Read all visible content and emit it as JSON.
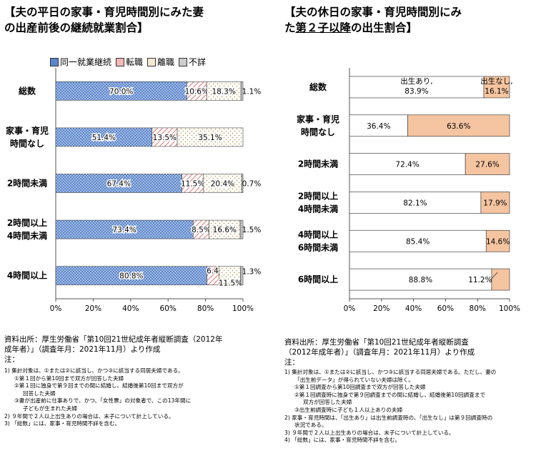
{
  "left": {
    "title_line1": "【夫の平日の家事・育児時間別にみた妻",
    "title_line2": "の出産前後の継続就業割合】",
    "legend": [
      "同一就業継続",
      "転職",
      "離職",
      "不詳"
    ],
    "source_line1": "資料出所：厚生労働省「第10回21世紀成年者縦断調査（2012年",
    "source_line2": "成年者）」（調査年月：2021年11月）より作成",
    "notes_head": "注：",
    "notes": [
      "1) 集計対象は、①または②に該当し、かつ③に該当する同居夫婦である。",
      "①第１回から第10回まで双方が回答した夫婦",
      "②第１回に独身で第９回までの間に結婚し、結婚後第10回まで双方が",
      "回答した夫婦",
      "③妻が出産前に仕事ありで、かつ、「女性票」の対象者で、この13年間に",
      "子どもが生まれた夫婦",
      "2) ９年間で２人以上出生ありの場合は、末子について計上している。",
      "3) 「総数」には、家事・育児時間不詳を含む。"
    ]
  },
  "right": {
    "title_line1": "【夫の休日の家事・育児時間別にみ",
    "title_line2_a": "た",
    "title_line2_b": "第２子以降",
    "title_line2_c": "の出生割合】",
    "source_line1": "資料出所：厚生労働省「第10回21世紀成年者縦断調査",
    "source_line2": "（2012年成年者）」（調査年月：2021年11月）より作成",
    "notes_head": "注：",
    "notes": [
      "1) 集計対象は、①または②に該当し、かつ③に該当する同居夫婦である。ただし、妻の",
      "「出生前データ」が得られていない夫婦は除く。",
      "①第１回調査から第10回調査まで双方が回答した夫婦",
      "②第１回調査時に独身で第９回調査までの間に結婚し、結婚後第10回調査まで",
      "双方が回答した夫婦",
      "③出生前調査時に子ども１人以上ありの夫婦",
      "2) 家事・育児時間は、「出生あり」は出生前調査時の、「出生なし」は第９回調査時の",
      "状況である。",
      "3) ９年間で２人以上出生ありの場合は、末子について計上している。",
      "4) 「総数」には、家事・育児時間不詳を含む。"
    ]
  },
  "chart_data": [
    {
      "type": "bar",
      "orientation": "horizontal",
      "stacked": true,
      "categories": [
        [
          "総数"
        ],
        [
          "家事・育児",
          "時間なし"
        ],
        [
          "2時間未満"
        ],
        [
          "2時間以上",
          "4時間未満"
        ],
        [
          "4時間以上"
        ]
      ],
      "series": [
        {
          "name": "同一就業継続",
          "values": [
            70.0,
            51.4,
            67.4,
            73.4,
            80.8
          ],
          "labels": [
            "70.0%",
            "51.4%",
            "67.4%",
            "73.4%",
            "80.8%"
          ],
          "color": "#4a78c0"
        },
        {
          "name": "転職",
          "values": [
            10.6,
            13.5,
            11.5,
            8.5,
            6.4
          ],
          "labels": [
            "10.6%",
            "13.5%",
            "11.5%",
            "8.5%",
            "6.4%"
          ],
          "color": "#d9534f"
        },
        {
          "name": "離職",
          "values": [
            18.3,
            35.1,
            20.4,
            16.6,
            11.5
          ],
          "labels": [
            "18.3%",
            "35.1%",
            "20.4%",
            "16.6%",
            "11.5%"
          ],
          "color": "#c8a040"
        },
        {
          "name": "不詳",
          "values": [
            1.1,
            0.0,
            0.7,
            1.5,
            1.3
          ],
          "labels": [
            "1.1%",
            "",
            "0.7%",
            "1.5%",
            "1.3%"
          ],
          "color": "#999999"
        }
      ],
      "xlim": [
        0,
        100
      ],
      "xticks": [
        "0%",
        "20%",
        "40%",
        "60%",
        "80%",
        "100%"
      ],
      "legend_position": "top"
    },
    {
      "type": "bar",
      "orientation": "horizontal",
      "stacked": true,
      "categories": [
        [
          "総数"
        ],
        [
          "家事・育児",
          "時間なし"
        ],
        [
          "2時間未満"
        ],
        [
          "2時間以上",
          "4時間未満"
        ],
        [
          "4時間以上",
          "6時間未満"
        ],
        [
          "6時間以上"
        ]
      ],
      "series": [
        {
          "name": "出生あり",
          "values": [
            83.9,
            36.4,
            72.4,
            82.1,
            85.4,
            88.8
          ],
          "labels": [
            "83.9%",
            "36.4%",
            "72.4%",
            "82.1%",
            "85.4%",
            "88.8%"
          ],
          "color": "#ffffff"
        },
        {
          "name": "出生なし",
          "values": [
            16.1,
            63.6,
            27.6,
            17.9,
            14.6,
            11.2
          ],
          "labels": [
            "16.1%",
            "63.6%",
            "27.6%",
            "17.9%",
            "14.6%",
            "11.2%"
          ],
          "color": "#f5c4a0"
        }
      ],
      "top_labels": [
        "出生あり,",
        "出生なし,"
      ],
      "xlim": [
        0,
        100
      ],
      "xticks": [
        "0%",
        "20%",
        "40%",
        "60%",
        "80%",
        "100%"
      ]
    }
  ]
}
